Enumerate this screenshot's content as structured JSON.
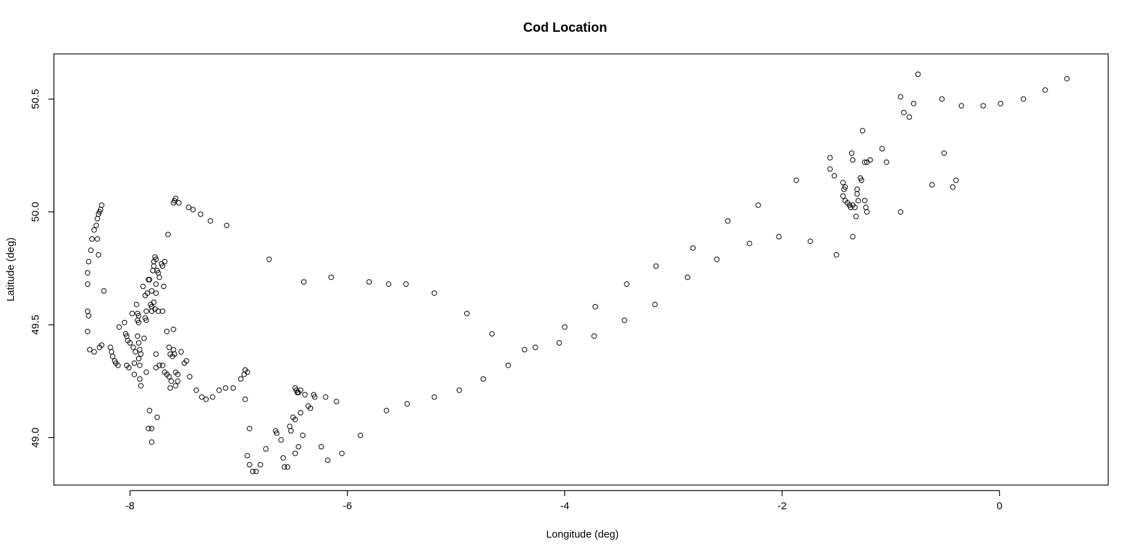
{
  "chart_data": {
    "type": "scatter",
    "title": "Cod Location",
    "xlabel": "Longitude (deg)",
    "ylabel": "Latitude (deg)",
    "xlim": [
      -8.7,
      1.0
    ],
    "ylim": [
      48.79,
      50.7
    ],
    "xticks": [
      -8,
      -6,
      -4,
      -2,
      0
    ],
    "yticks": [
      49.0,
      49.5,
      50.0,
      50.5
    ],
    "xtick_labels": [
      "-8",
      "-6",
      "-4",
      "-2",
      "0"
    ],
    "ytick_labels": [
      "49.0",
      "49.5",
      "50.0",
      "50.5"
    ],
    "grid": false,
    "marker": "open-circle",
    "points": [
      [
        -8.26,
        50.03
      ],
      [
        -8.27,
        50.01
      ],
      [
        -8.28,
        50.0
      ],
      [
        -8.29,
        49.99
      ],
      [
        -8.3,
        49.97
      ],
      [
        -8.31,
        49.94
      ],
      [
        -8.33,
        49.92
      ],
      [
        -8.35,
        49.88
      ],
      [
        -8.3,
        49.88
      ],
      [
        -8.36,
        49.83
      ],
      [
        -8.29,
        49.81
      ],
      [
        -8.38,
        49.78
      ],
      [
        -8.39,
        49.73
      ],
      [
        -8.39,
        49.68
      ],
      [
        -8.39,
        49.56
      ],
      [
        -8.38,
        49.54
      ],
      [
        -8.39,
        49.47
      ],
      [
        -8.37,
        49.39
      ],
      [
        -8.33,
        49.38
      ],
      [
        -8.28,
        49.4
      ],
      [
        -8.26,
        49.41
      ],
      [
        -8.24,
        49.65
      ],
      [
        -8.18,
        49.4
      ],
      [
        -8.17,
        49.38
      ],
      [
        -8.16,
        49.36
      ],
      [
        -8.14,
        49.34
      ],
      [
        -8.13,
        49.33
      ],
      [
        -8.11,
        49.32
      ],
      [
        -8.1,
        49.49
      ],
      [
        -8.05,
        49.51
      ],
      [
        -8.04,
        49.46
      ],
      [
        -8.03,
        49.45
      ],
      [
        -8.02,
        49.43
      ],
      [
        -8.0,
        49.42
      ],
      [
        -8.03,
        49.32
      ],
      [
        -8.01,
        49.31
      ],
      [
        -7.98,
        49.55
      ],
      [
        -7.97,
        49.4
      ],
      [
        -7.95,
        49.38
      ],
      [
        -7.96,
        49.33
      ],
      [
        -7.96,
        49.28
      ],
      [
        -7.94,
        49.59
      ],
      [
        -7.93,
        49.55
      ],
      [
        -7.92,
        49.54
      ],
      [
        -7.93,
        49.52
      ],
      [
        -7.92,
        49.51
      ],
      [
        -7.93,
        49.45
      ],
      [
        -7.92,
        49.42
      ],
      [
        -7.91,
        49.39
      ],
      [
        -7.9,
        49.37
      ],
      [
        -7.92,
        49.35
      ],
      [
        -7.91,
        49.32
      ],
      [
        -7.91,
        49.26
      ],
      [
        -7.9,
        49.23
      ],
      [
        -7.88,
        49.67
      ],
      [
        -7.86,
        49.63
      ],
      [
        -7.84,
        49.64
      ],
      [
        -7.85,
        49.56
      ],
      [
        -7.86,
        49.53
      ],
      [
        -7.85,
        49.52
      ],
      [
        -7.87,
        49.44
      ],
      [
        -7.85,
        49.29
      ],
      [
        -7.83,
        49.7
      ],
      [
        -7.82,
        49.7
      ],
      [
        -7.8,
        49.65
      ],
      [
        -7.81,
        49.59
      ],
      [
        -7.8,
        49.58
      ],
      [
        -7.8,
        49.56
      ],
      [
        -7.79,
        49.74
      ],
      [
        -7.78,
        49.76
      ],
      [
        -7.78,
        49.78
      ],
      [
        -7.77,
        49.8
      ],
      [
        -7.76,
        49.79
      ],
      [
        -7.75,
        49.74
      ],
      [
        -7.74,
        49.73
      ],
      [
        -7.76,
        49.68
      ],
      [
        -7.78,
        49.6
      ],
      [
        -7.77,
        49.57
      ],
      [
        -7.76,
        49.64
      ],
      [
        -7.73,
        49.71
      ],
      [
        -7.74,
        49.56
      ],
      [
        -7.82,
        49.12
      ],
      [
        -7.83,
        49.04
      ],
      [
        -7.8,
        49.04
      ],
      [
        -7.8,
        48.98
      ],
      [
        -7.75,
        49.09
      ],
      [
        -7.76,
        49.37
      ],
      [
        -7.76,
        49.31
      ],
      [
        -7.73,
        49.32
      ],
      [
        -7.71,
        49.77
      ],
      [
        -7.7,
        49.76
      ],
      [
        -7.68,
        49.78
      ],
      [
        -7.7,
        49.56
      ],
      [
        -7.69,
        49.67
      ],
      [
        -7.66,
        49.47
      ],
      [
        -7.65,
        49.9
      ],
      [
        -7.7,
        49.32
      ],
      [
        -7.68,
        49.29
      ],
      [
        -7.66,
        49.28
      ],
      [
        -7.64,
        49.27
      ],
      [
        -7.64,
        49.4
      ],
      [
        -7.63,
        49.37
      ],
      [
        -7.62,
        49.25
      ],
      [
        -7.63,
        49.22
      ],
      [
        -7.6,
        49.48
      ],
      [
        -7.6,
        49.39
      ],
      [
        -7.59,
        49.37
      ],
      [
        -7.58,
        49.29
      ],
      [
        -7.56,
        49.28
      ],
      [
        -7.56,
        49.25
      ],
      [
        -7.53,
        49.38
      ],
      [
        -7.5,
        49.33
      ],
      [
        -7.48,
        49.34
      ],
      [
        -7.45,
        49.27
      ],
      [
        -7.58,
        49.23
      ],
      [
        -7.61,
        49.36
      ],
      [
        -7.59,
        50.05
      ],
      [
        -7.6,
        50.04
      ],
      [
        -7.58,
        50.06
      ],
      [
        -7.55,
        50.04
      ],
      [
        -7.46,
        50.02
      ],
      [
        -7.42,
        50.01
      ],
      [
        -7.35,
        49.99
      ],
      [
        -7.26,
        49.96
      ],
      [
        -7.11,
        49.94
      ],
      [
        -7.39,
        49.21
      ],
      [
        -7.34,
        49.18
      ],
      [
        -7.3,
        49.17
      ],
      [
        -7.24,
        49.18
      ],
      [
        -7.18,
        49.21
      ],
      [
        -7.12,
        49.22
      ],
      [
        -7.05,
        49.22
      ],
      [
        -6.98,
        49.26
      ],
      [
        -6.95,
        49.28
      ],
      [
        -6.94,
        49.3
      ],
      [
        -6.92,
        49.29
      ],
      [
        -6.94,
        49.17
      ],
      [
        -6.9,
        49.04
      ],
      [
        -6.92,
        48.92
      ],
      [
        -6.9,
        48.88
      ],
      [
        -6.87,
        48.85
      ],
      [
        -6.84,
        48.85
      ],
      [
        -6.8,
        48.88
      ],
      [
        -6.75,
        48.95
      ],
      [
        -6.72,
        49.79
      ],
      [
        -6.66,
        49.03
      ],
      [
        -6.65,
        49.02
      ],
      [
        -6.61,
        48.99
      ],
      [
        -6.59,
        48.91
      ],
      [
        -6.58,
        48.87
      ],
      [
        -6.55,
        48.87
      ],
      [
        -6.53,
        49.05
      ],
      [
        -6.52,
        49.03
      ],
      [
        -6.5,
        49.09
      ],
      [
        -6.48,
        49.08
      ],
      [
        -6.48,
        48.93
      ],
      [
        -6.45,
        48.96
      ],
      [
        -6.43,
        49.11
      ],
      [
        -6.41,
        49.01
      ],
      [
        -6.48,
        49.22
      ],
      [
        -6.47,
        49.21
      ],
      [
        -6.46,
        49.2
      ],
      [
        -6.45,
        49.2
      ],
      [
        -6.43,
        49.21
      ],
      [
        -6.39,
        49.19
      ],
      [
        -6.36,
        49.14
      ],
      [
        -6.34,
        49.13
      ],
      [
        -6.31,
        49.19
      ],
      [
        -6.3,
        49.18
      ],
      [
        -6.4,
        49.69
      ],
      [
        -6.15,
        49.71
      ],
      [
        -6.2,
        49.18
      ],
      [
        -6.1,
        49.16
      ],
      [
        -6.24,
        48.96
      ],
      [
        -6.18,
        48.9
      ],
      [
        -6.05,
        48.93
      ],
      [
        -5.8,
        49.69
      ],
      [
        -5.62,
        49.68
      ],
      [
        -5.46,
        49.68
      ],
      [
        -5.2,
        49.64
      ],
      [
        -4.9,
        49.55
      ],
      [
        -5.88,
        49.01
      ],
      [
        -5.64,
        49.12
      ],
      [
        -5.45,
        49.15
      ],
      [
        -5.2,
        49.18
      ],
      [
        -4.97,
        49.21
      ],
      [
        -4.75,
        49.26
      ],
      [
        -4.67,
        49.46
      ],
      [
        -4.52,
        49.32
      ],
      [
        -4.37,
        49.39
      ],
      [
        -4.27,
        49.4
      ],
      [
        -4.05,
        49.42
      ],
      [
        -4.0,
        49.49
      ],
      [
        -3.72,
        49.58
      ],
      [
        -3.73,
        49.45
      ],
      [
        -3.45,
        49.52
      ],
      [
        -3.43,
        49.68
      ],
      [
        -3.17,
        49.59
      ],
      [
        -3.16,
        49.76
      ],
      [
        -2.87,
        49.71
      ],
      [
        -2.82,
        49.84
      ],
      [
        -2.6,
        49.79
      ],
      [
        -2.5,
        49.96
      ],
      [
        -2.3,
        49.86
      ],
      [
        -2.22,
        50.03
      ],
      [
        -2.03,
        49.89
      ],
      [
        -1.87,
        50.14
      ],
      [
        -1.74,
        49.87
      ],
      [
        -1.5,
        49.81
      ],
      [
        -1.56,
        50.24
      ],
      [
        -1.56,
        50.19
      ],
      [
        -1.52,
        50.16
      ],
      [
        -1.44,
        50.13
      ],
      [
        -1.42,
        50.11
      ],
      [
        -1.43,
        50.1
      ],
      [
        -1.44,
        50.07
      ],
      [
        -1.42,
        50.05
      ],
      [
        -1.4,
        50.04
      ],
      [
        -1.38,
        50.03
      ],
      [
        -1.37,
        50.02
      ],
      [
        -1.35,
        50.03
      ],
      [
        -1.33,
        50.02
      ],
      [
        -1.32,
        49.98
      ],
      [
        -1.35,
        49.89
      ],
      [
        -1.36,
        50.26
      ],
      [
        -1.35,
        50.23
      ],
      [
        -1.31,
        50.1
      ],
      [
        -1.31,
        50.08
      ],
      [
        -1.3,
        50.05
      ],
      [
        -1.28,
        50.15
      ],
      [
        -1.27,
        50.14
      ],
      [
        -1.26,
        50.36
      ],
      [
        -1.24,
        50.22
      ],
      [
        -1.22,
        50.22
      ],
      [
        -1.19,
        50.23
      ],
      [
        -1.24,
        50.05
      ],
      [
        -1.23,
        50.02
      ],
      [
        -1.22,
        50.0
      ],
      [
        -1.08,
        50.28
      ],
      [
        -1.04,
        50.22
      ],
      [
        -0.91,
        50.51
      ],
      [
        -0.88,
        50.44
      ],
      [
        -0.83,
        50.42
      ],
      [
        -0.79,
        50.48
      ],
      [
        -0.75,
        50.61
      ],
      [
        -0.91,
        50.0
      ],
      [
        -0.53,
        50.5
      ],
      [
        -0.51,
        50.26
      ],
      [
        -0.62,
        50.12
      ],
      [
        -0.43,
        50.11
      ],
      [
        -0.4,
        50.14
      ],
      [
        -0.35,
        50.47
      ],
      [
        -0.15,
        50.47
      ],
      [
        0.01,
        50.48
      ],
      [
        0.22,
        50.5
      ],
      [
        0.42,
        50.54
      ],
      [
        0.62,
        50.59
      ]
    ]
  }
}
